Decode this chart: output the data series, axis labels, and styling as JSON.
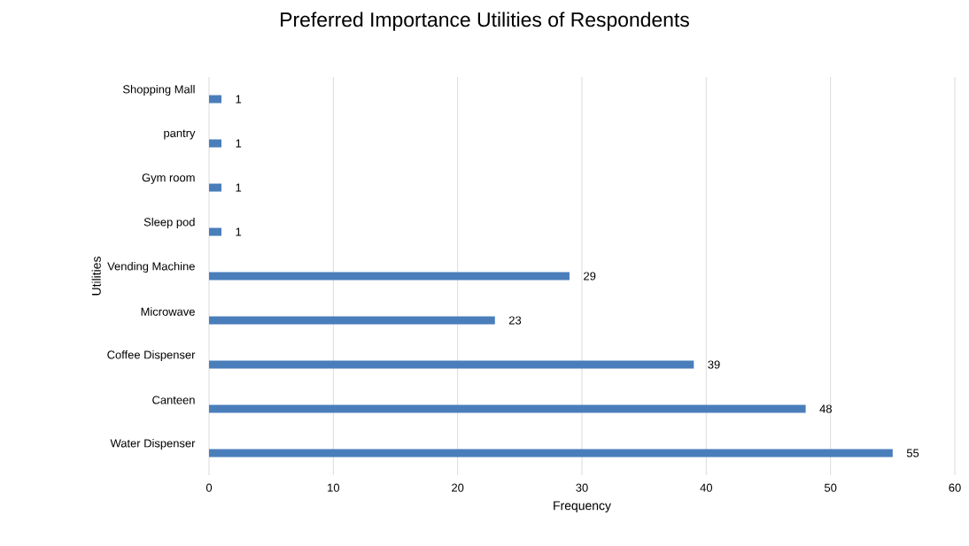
{
  "chart_data": {
    "type": "bar",
    "orientation": "horizontal",
    "title": "Preferred Importance Utilities of Respondents",
    "xlabel": "Frequency",
    "ylabel": "Utilities",
    "categories": [
      "Shopping Mall",
      "pantry",
      "Gym room",
      "Sleep pod",
      "Vending Machine",
      "Microwave",
      "Coffee Dispenser",
      "Canteen",
      "Water Dispenser"
    ],
    "values": [
      1,
      1,
      1,
      1,
      29,
      23,
      39,
      48,
      55
    ],
    "color": "#4a7ebb",
    "data_labels": true,
    "xlim": [
      0,
      60
    ],
    "xticks": [
      0,
      10,
      20,
      30,
      40,
      50,
      60
    ],
    "grid": "x"
  }
}
